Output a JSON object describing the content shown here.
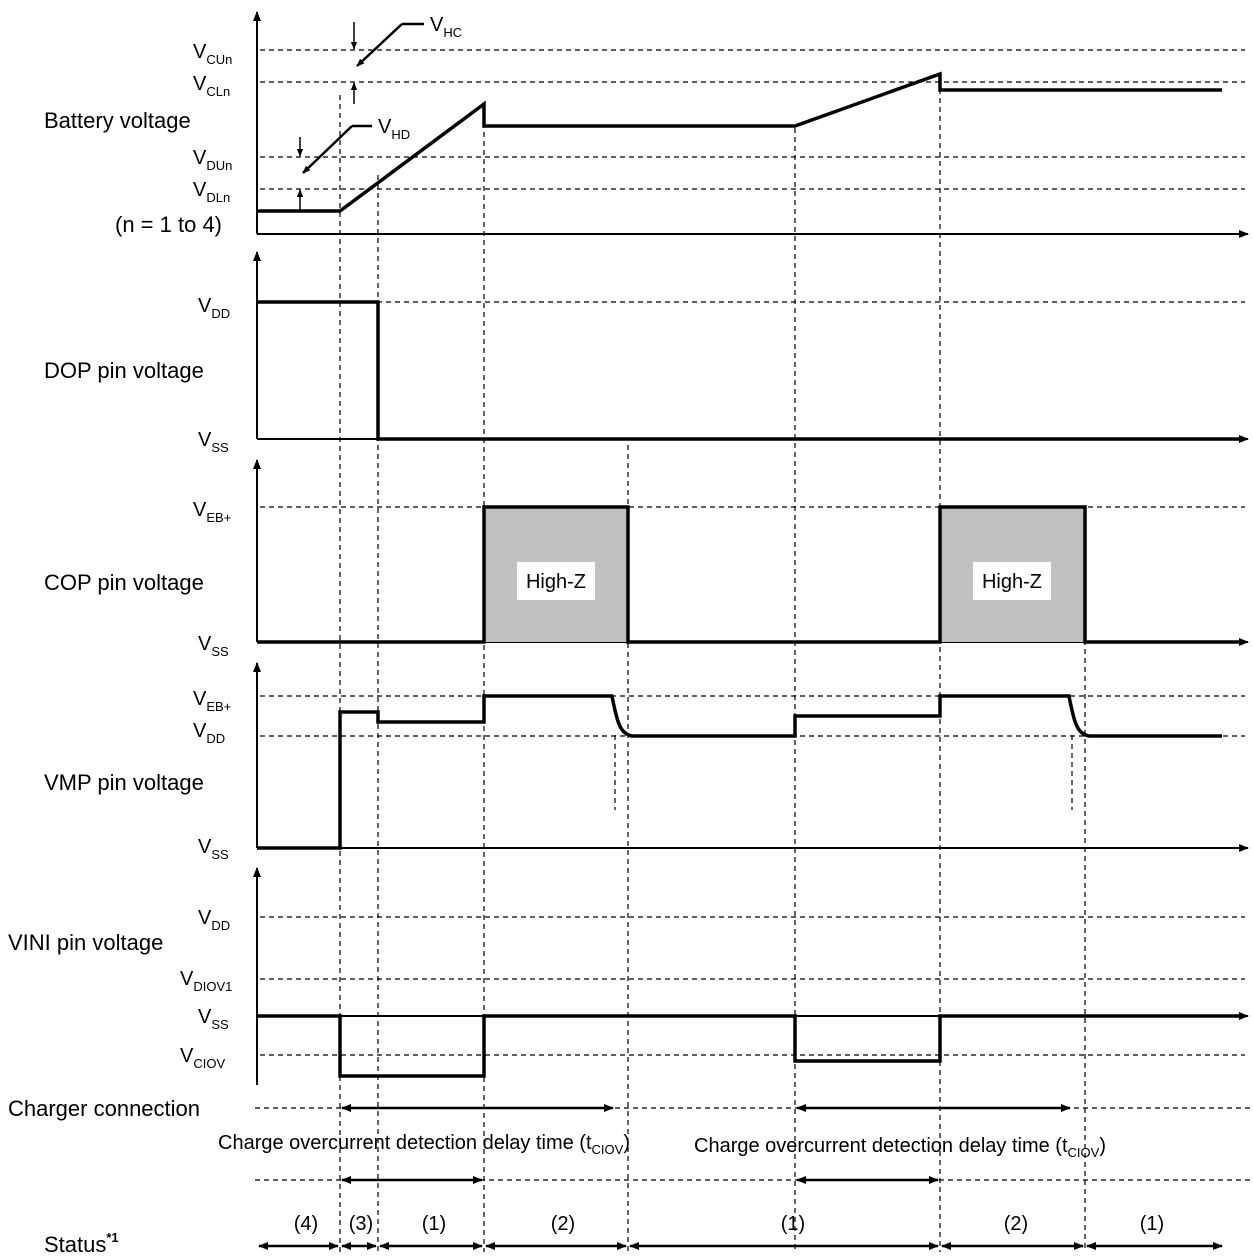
{
  "panels": {
    "battery": {
      "label": "Battery voltage",
      "note": "(n = 1 to 4)",
      "levels": [
        {
          "main": "V",
          "sub": "CUn"
        },
        {
          "main": "V",
          "sub": "CLn"
        },
        {
          "main": "V",
          "sub": "DUn"
        },
        {
          "main": "V",
          "sub": "DLn"
        }
      ],
      "hysteresis_c": {
        "main": "V",
        "sub": "HC"
      },
      "hysteresis_d": {
        "main": "V",
        "sub": "HD"
      }
    },
    "dop": {
      "label": "DOP pin voltage",
      "levels": [
        {
          "main": "V",
          "sub": "DD"
        },
        {
          "main": "V",
          "sub": "SS"
        }
      ]
    },
    "cop": {
      "label": "COP pin voltage",
      "levels": [
        {
          "main": "V",
          "sub": "EB+"
        },
        {
          "main": "V",
          "sub": "SS"
        }
      ],
      "highz_label": "High-Z"
    },
    "vmp": {
      "label": "VMP pin voltage",
      "levels": [
        {
          "main": "V",
          "sub": "EB+"
        },
        {
          "main": "V",
          "sub": "DD"
        },
        {
          "main": "V",
          "sub": "SS"
        }
      ]
    },
    "vini": {
      "label": "VINI pin voltage",
      "levels": [
        {
          "main": "V",
          "sub": "DD"
        },
        {
          "main": "V",
          "sub": "DIOV1"
        },
        {
          "main": "V",
          "sub": "SS"
        },
        {
          "main": "V",
          "sub": "CIOV"
        }
      ]
    }
  },
  "charger": {
    "label": "Charger connection",
    "delay_label": "Charge overcurrent detection delay time (t",
    "delay_sub": "CIOV",
    "delay_close": ")"
  },
  "status": {
    "label": "Status",
    "footnote": "*1",
    "segments": [
      "(4)",
      "(3)",
      "(1)",
      "(2)",
      "(1)",
      "(2)",
      "(1)"
    ]
  },
  "colors": {
    "line": "#000000",
    "highz_fill": "#c0c0c0"
  }
}
